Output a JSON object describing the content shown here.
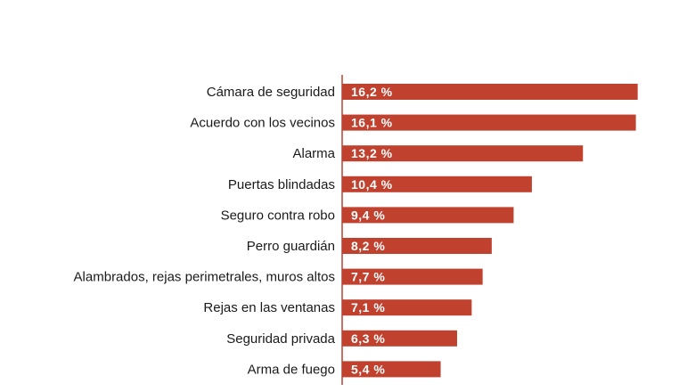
{
  "chart_data": {
    "type": "bar",
    "orientation": "horizontal",
    "title": "",
    "xlabel": "",
    "ylabel": "",
    "xlim": [
      0,
      16.9
    ],
    "grid": false,
    "bar_color": "#c0412e",
    "axis_color": "#c0412e",
    "categories": [
      "Cámara de seguridad",
      "Acuerdo con los vecinos",
      "Alarma",
      "Puertas blindadas",
      "Seguro contra robo",
      "Perro guardián",
      "Alambrados, rejas perimetrales, muros altos",
      "Rejas en las ventanas",
      "Seguridad privada",
      "Arma de fuego"
    ],
    "values": [
      16.2,
      16.1,
      13.2,
      10.4,
      9.4,
      8.2,
      7.7,
      7.1,
      6.3,
      5.4
    ],
    "value_labels": [
      "16,2 %",
      "16,1 %",
      "13,2 %",
      "10,4 %",
      "9,4 %",
      "8,2 %",
      "7,7 %",
      "7,1 %",
      "6,3 %",
      "5,4 %"
    ]
  }
}
